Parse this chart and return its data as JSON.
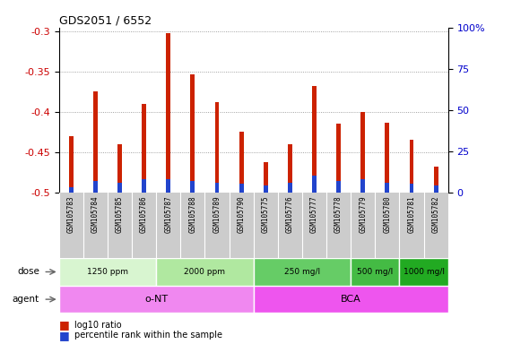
{
  "title": "GDS2051 / 6552",
  "samples": [
    "GSM105783",
    "GSM105784",
    "GSM105785",
    "GSM105786",
    "GSM105787",
    "GSM105788",
    "GSM105789",
    "GSM105790",
    "GSM105775",
    "GSM105776",
    "GSM105777",
    "GSM105778",
    "GSM105779",
    "GSM105780",
    "GSM105781",
    "GSM105782"
  ],
  "log10_ratio": [
    -0.43,
    -0.375,
    -0.44,
    -0.39,
    -0.302,
    -0.353,
    -0.388,
    -0.425,
    -0.463,
    -0.44,
    -0.368,
    -0.415,
    -0.4,
    -0.413,
    -0.435,
    -0.468
  ],
  "percentile_rank": [
    3,
    7,
    6,
    8,
    8,
    7,
    6,
    5,
    4,
    6,
    10,
    7,
    8,
    6,
    5,
    4
  ],
  "ylim_left": [
    -0.5,
    -0.295
  ],
  "ylim_right": [
    0,
    100
  ],
  "yticks_left": [
    -0.5,
    -0.45,
    -0.4,
    -0.35,
    -0.3
  ],
  "yticks_right": [
    0,
    25,
    50,
    75,
    100
  ],
  "bar_color_red": "#cc2200",
  "bar_color_blue": "#2244cc",
  "dose_groups": [
    {
      "label": "1250 ppm",
      "start": 0,
      "end": 4,
      "color": "#d8f5d0"
    },
    {
      "label": "2000 ppm",
      "start": 4,
      "end": 8,
      "color": "#b0e8a0"
    },
    {
      "label": "250 mg/l",
      "start": 8,
      "end": 12,
      "color": "#66cc66"
    },
    {
      "label": "500 mg/l",
      "start": 12,
      "end": 14,
      "color": "#44bb44"
    },
    {
      "label": "1000 mg/l",
      "start": 14,
      "end": 16,
      "color": "#22aa22"
    }
  ],
  "agent_groups": [
    {
      "label": "o-NT",
      "start": 0,
      "end": 8,
      "color": "#f088f0"
    },
    {
      "label": "BCA",
      "start": 8,
      "end": 16,
      "color": "#ee55ee"
    }
  ],
  "legend_red": "log10 ratio",
  "legend_blue": "percentile rank within the sample",
  "background_color": "#ffffff",
  "grid_color": "#888888",
  "tick_label_color_left": "#cc0000",
  "tick_label_color_right": "#0000cc",
  "bar_width": 0.18,
  "label_row_color": "#cccccc"
}
